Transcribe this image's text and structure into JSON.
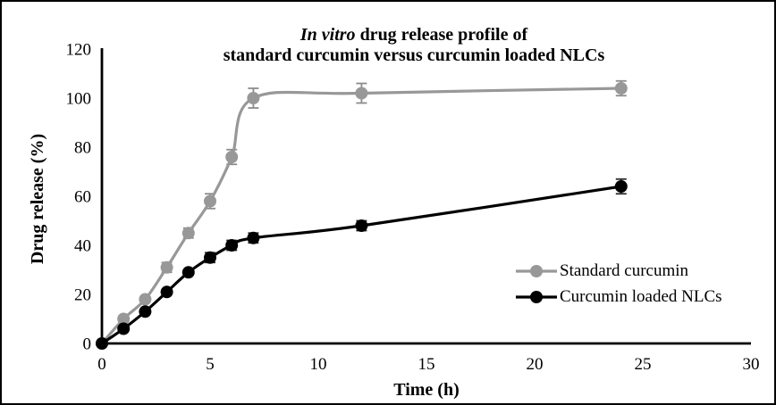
{
  "figure": {
    "title_italic": "In vitro",
    "title_rest": " drug release profile of",
    "title_line2": "standard curcumin versus curcumin loaded NLCs",
    "x_axis_title": "Time (h)",
    "y_axis_title": "Drug release (%)"
  },
  "legend": {
    "items": [
      {
        "label": "Standard curcumin",
        "color": "#989898"
      },
      {
        "label": "Curcumin loaded NLCs",
        "color": "#000000"
      }
    ]
  },
  "chart_data": {
    "type": "line",
    "title": "In vitro drug release profile of standard curcumin versus curcumin loaded NLCs",
    "xlabel": "Time (h)",
    "ylabel": "Drug release (%)",
    "xlim": [
      0,
      30
    ],
    "ylim": [
      0,
      120
    ],
    "x_ticks": [
      0,
      5,
      10,
      15,
      20,
      25,
      30
    ],
    "y_ticks": [
      0,
      20,
      40,
      60,
      80,
      100,
      120
    ],
    "grid": false,
    "legend_position": "center-right",
    "x": [
      0,
      1,
      2,
      3,
      4,
      5,
      6,
      7,
      12,
      24
    ],
    "series": [
      {
        "name": "Standard curcumin",
        "color": "#989898",
        "marker": "circle",
        "smooth": true,
        "values": [
          0,
          10,
          18,
          31,
          45,
          58,
          76,
          100,
          102,
          104
        ],
        "error": [
          0,
          0,
          0,
          2,
          2,
          3,
          3,
          4,
          4,
          3
        ]
      },
      {
        "name": "Curcumin loaded NLCs",
        "color": "#000000",
        "marker": "circle",
        "smooth": true,
        "values": [
          0,
          6,
          13,
          21,
          29,
          35,
          40,
          43,
          48,
          64
        ],
        "error": [
          0,
          0,
          0,
          1,
          1,
          2,
          2,
          2,
          2,
          3
        ]
      }
    ]
  }
}
